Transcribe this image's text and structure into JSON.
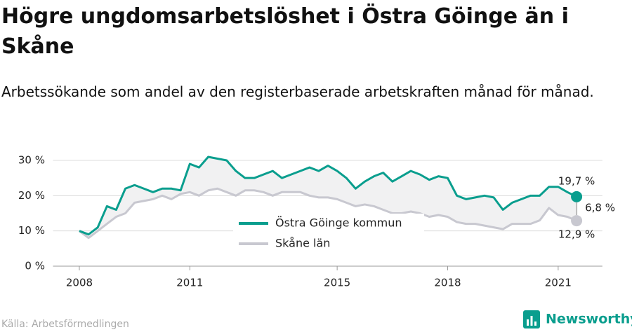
{
  "chart_data": {
    "type": "line",
    "title": "Högre ungdomsarbetslöshet i Östra Göinge än i Skåne",
    "subtitle": "Arbetssökande som andel av den registerbaserade arbetskraften månad för månad.",
    "source": "Källa: Arbetsförmedlingen",
    "brand": "Newsworthy",
    "x": [
      2008.0,
      2008.25,
      2008.5,
      2008.75,
      2009.0,
      2009.25,
      2009.5,
      2009.75,
      2010.0,
      2010.25,
      2010.5,
      2010.75,
      2011.0,
      2011.25,
      2011.5,
      2011.75,
      2012.0,
      2012.25,
      2012.5,
      2012.75,
      2013.0,
      2013.25,
      2013.5,
      2013.75,
      2014.0,
      2014.25,
      2014.5,
      2014.75,
      2015.0,
      2015.25,
      2015.5,
      2015.75,
      2016.0,
      2016.25,
      2016.5,
      2016.75,
      2017.0,
      2017.25,
      2017.5,
      2017.75,
      2018.0,
      2018.25,
      2018.5,
      2018.75,
      2019.0,
      2019.25,
      2019.5,
      2019.75,
      2020.0,
      2020.25,
      2020.5,
      2020.75,
      2021.0,
      2021.25,
      2021.5
    ],
    "series": [
      {
        "name": "Östra Göinge kommun",
        "color": "#0a9e8e",
        "values": [
          10,
          9,
          11,
          17,
          16,
          22,
          23,
          22,
          21,
          22,
          22,
          21.5,
          29,
          28,
          31,
          30.5,
          30,
          27,
          25,
          25,
          26,
          27,
          25,
          26,
          27,
          28,
          27,
          28.5,
          27,
          25,
          22,
          24,
          25.5,
          26.5,
          24,
          25.5,
          27,
          26,
          24.5,
          25.5,
          25,
          20,
          19,
          19.5,
          20,
          19.5,
          16,
          18,
          19,
          20,
          20,
          22.5,
          22.5,
          21,
          19.7
        ],
        "value_labels": [
          null,
          null,
          null,
          null,
          null,
          null,
          null,
          null,
          null,
          null,
          null,
          null,
          null,
          null,
          null,
          null,
          null,
          null,
          null,
          null,
          null,
          null,
          null,
          null,
          null,
          null,
          null,
          null,
          null,
          null,
          null,
          null,
          null,
          null,
          null,
          null,
          null,
          null,
          null,
          null,
          null,
          null,
          null,
          null,
          null,
          null,
          null,
          null,
          null,
          null,
          null,
          null,
          null,
          null,
          "19,7 %"
        ]
      },
      {
        "name": "Skåne län",
        "color": "#c8c8d0",
        "values": [
          10,
          8,
          10,
          12,
          14,
          15,
          18,
          18.5,
          19,
          20,
          19,
          20.5,
          21,
          20,
          21.5,
          22,
          21,
          20,
          21.5,
          21.5,
          21,
          20,
          21,
          21,
          21,
          20,
          19.5,
          19.5,
          19,
          18,
          17,
          17.5,
          17,
          16,
          15,
          15,
          15.5,
          15,
          14,
          14.5,
          14,
          12.5,
          12,
          12,
          11.5,
          11,
          10.5,
          12,
          12,
          12,
          13,
          16.5,
          14.5,
          14,
          12.9
        ],
        "value_labels": [
          null,
          null,
          null,
          null,
          null,
          null,
          null,
          null,
          null,
          null,
          null,
          null,
          null,
          null,
          null,
          null,
          null,
          null,
          null,
          null,
          null,
          null,
          null,
          null,
          null,
          null,
          null,
          null,
          null,
          null,
          null,
          null,
          null,
          null,
          null,
          null,
          null,
          null,
          null,
          null,
          null,
          null,
          null,
          null,
          null,
          null,
          null,
          null,
          null,
          null,
          null,
          null,
          null,
          null,
          "12,9 %"
        ]
      }
    ],
    "annotation": {
      "label": "6,8 %",
      "value": 6.8
    },
    "xlim": [
      2007.4,
      2022.2
    ],
    "xticks": [
      2008,
      2011,
      2015,
      2018,
      2021
    ],
    "ylim": [
      0,
      30
    ],
    "yticks": [
      {
        "value": 0,
        "label": "0 %"
      },
      {
        "value": 10,
        "label": "10 %"
      },
      {
        "value": 20,
        "label": "20 %"
      },
      {
        "value": 30,
        "label": "30 %"
      }
    ],
    "grid": true
  }
}
